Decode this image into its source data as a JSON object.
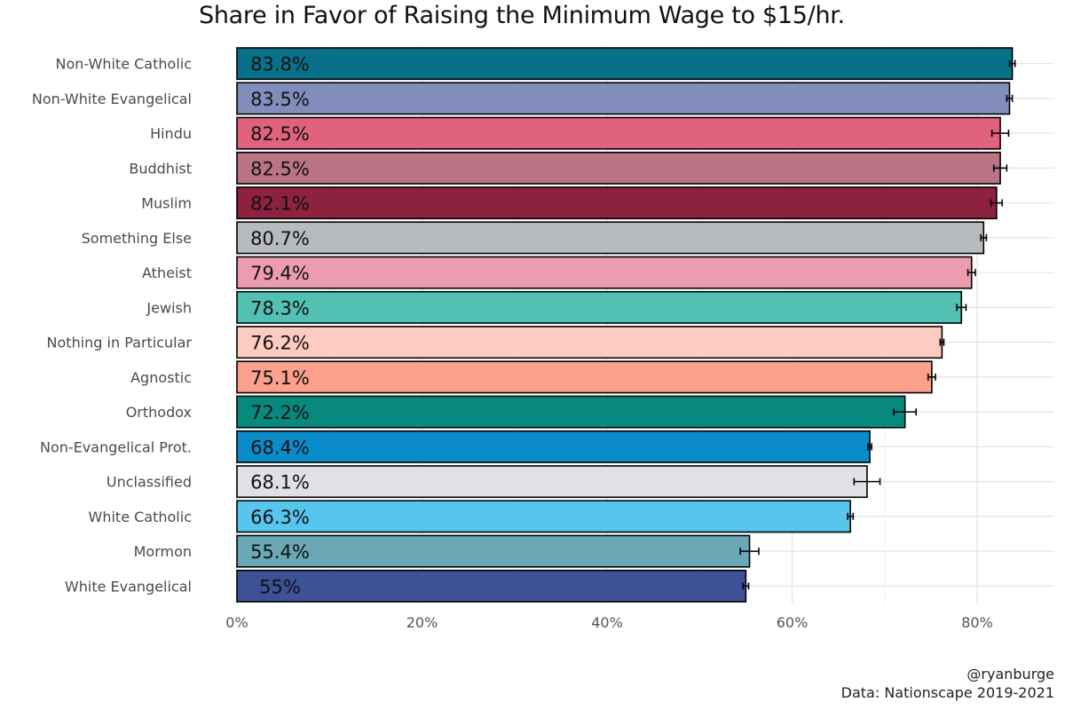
{
  "chart_data": {
    "type": "bar",
    "orientation": "horizontal",
    "title": "Share in Favor of Raising the Minimum Wage to $15/hr.",
    "xlabel": "",
    "ylabel": "",
    "xlim": [
      0,
      0.88
    ],
    "x_ticks": [
      0,
      0.2,
      0.4,
      0.6,
      0.8
    ],
    "x_tick_labels": [
      "0%",
      "20%",
      "40%",
      "60%",
      "80%"
    ],
    "grid": true,
    "categories": [
      "Non-White Catholic",
      "Non-White Evangelical",
      "Hindu",
      "Buddhist",
      "Muslim",
      "Something Else",
      "Atheist",
      "Jewish",
      "Nothing in Particular",
      "Agnostic",
      "Orthodox",
      "Non-Evangelical Prot.",
      "Unclassified",
      "White Catholic",
      "Mormon",
      "White Evangelical"
    ],
    "values": [
      0.838,
      0.835,
      0.825,
      0.825,
      0.821,
      0.807,
      0.794,
      0.783,
      0.762,
      0.751,
      0.722,
      0.684,
      0.681,
      0.663,
      0.554,
      0.55
    ],
    "value_labels": [
      "83.8%",
      "83.5%",
      "82.5%",
      "82.5%",
      "82.1%",
      "80.7%",
      "79.4%",
      "78.3%",
      "76.2%",
      "75.1%",
      "72.2%",
      "68.4%",
      "68.1%",
      "66.3%",
      "55.4%",
      "55%"
    ],
    "error_low": [
      0.835,
      0.832,
      0.816,
      0.818,
      0.815,
      0.804,
      0.79,
      0.778,
      0.76,
      0.747,
      0.71,
      0.682,
      0.667,
      0.66,
      0.544,
      0.547
    ],
    "error_high": [
      0.841,
      0.838,
      0.834,
      0.832,
      0.827,
      0.81,
      0.798,
      0.788,
      0.764,
      0.755,
      0.734,
      0.686,
      0.695,
      0.666,
      0.564,
      0.553
    ],
    "colors": [
      "#087189",
      "#828dbb",
      "#e0627d",
      "#bb7485",
      "#8c2140",
      "#b7babf",
      "#eb9daf",
      "#53c0b4",
      "#fecbc1",
      "#fca08c",
      "#078a7d",
      "#0a8ccb",
      "#dfe1e6",
      "#57c5ed",
      "#6aa8b5",
      "#3d5197"
    ]
  },
  "captions": {
    "handle": "@ryanburge",
    "source": "Data: Nationscape 2019-2021"
  }
}
